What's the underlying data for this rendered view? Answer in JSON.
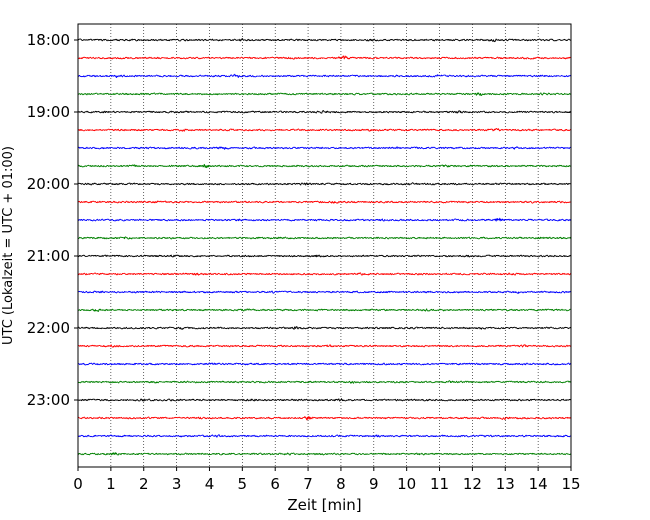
{
  "chart_data": {
    "type": "line",
    "title": "",
    "xlabel": "Zeit  [min]",
    "ylabel": "UTC (Lokalzeit = UTC + 01:00)",
    "xlim": [
      0,
      15
    ],
    "x_ticks": [
      "0",
      "1",
      "2",
      "3",
      "4",
      "5",
      "6",
      "7",
      "8",
      "9",
      "10",
      "11",
      "12",
      "13",
      "14",
      "15"
    ],
    "y_ticks": [
      "18:00",
      "19:00",
      "20:00",
      "21:00",
      "22:00",
      "23:00"
    ],
    "grid": "vertical dotted",
    "trace_interval_minutes": 15,
    "first_trace": "18:00",
    "last_trace": "23:45",
    "trace_colors": [
      "#000000",
      "#ff0000",
      "#0000ff",
      "#008000"
    ],
    "series": [
      {
        "start": "18:00",
        "events": [
          [
            5.0,
            1.8
          ],
          [
            9.0,
            1.5
          ],
          [
            12.6,
            2.2
          ]
        ]
      },
      {
        "start": "18:15",
        "events": [
          [
            8.1,
            3.2
          ],
          [
            6.5,
            1.6
          ],
          [
            13.7,
            1.5
          ]
        ]
      },
      {
        "start": "18:30",
        "events": [
          [
            1.2,
            1.8
          ],
          [
            4.8,
            2.3
          ],
          [
            10.9,
            1.7
          ]
        ]
      },
      {
        "start": "18:45",
        "events": [
          [
            2.0,
            1.6
          ],
          [
            12.2,
            2.0
          ],
          [
            14.2,
            1.5
          ]
        ]
      },
      {
        "start": "19:00",
        "events": [
          [
            0.8,
            1.6
          ],
          [
            7.5,
            1.8
          ],
          [
            11.6,
            1.6
          ]
        ]
      },
      {
        "start": "19:15",
        "events": [
          [
            3.2,
            1.7
          ],
          [
            8.9,
            1.6
          ],
          [
            12.7,
            2.3
          ]
        ]
      },
      {
        "start": "19:30",
        "events": [
          [
            4.4,
            2.0
          ],
          [
            9.7,
            1.5
          ],
          [
            13.3,
            1.7
          ]
        ]
      },
      {
        "start": "19:45",
        "events": [
          [
            1.7,
            1.6
          ],
          [
            3.9,
            2.3
          ],
          [
            11.2,
            1.8
          ]
        ]
      },
      {
        "start": "20:00",
        "events": [
          [
            0.4,
            1.5
          ],
          [
            6.9,
            2.0
          ],
          [
            10.1,
            2.1
          ]
        ]
      },
      {
        "start": "20:15",
        "events": [
          [
            2.4,
            1.7
          ],
          [
            7.8,
            1.6
          ],
          [
            13.9,
            1.5
          ]
        ]
      },
      {
        "start": "20:30",
        "events": [
          [
            4.9,
            1.6
          ],
          [
            9.3,
            1.5
          ],
          [
            12.8,
            2.8
          ]
        ]
      },
      {
        "start": "20:45",
        "events": [
          [
            1.5,
            1.8
          ],
          [
            6.1,
            1.5
          ],
          [
            14.1,
            1.6
          ]
        ]
      },
      {
        "start": "21:00",
        "events": [
          [
            2.9,
            1.6
          ],
          [
            7.3,
            2.0
          ],
          [
            11.9,
            1.5
          ]
        ]
      },
      {
        "start": "21:15",
        "events": [
          [
            3.6,
            1.6
          ],
          [
            8.6,
            1.8
          ],
          [
            13.2,
            1.5
          ]
        ]
      },
      {
        "start": "21:30",
        "events": [
          [
            0.7,
            1.5
          ],
          [
            5.9,
            1.7
          ],
          [
            13.4,
            2.0
          ]
        ]
      },
      {
        "start": "21:45",
        "events": [
          [
            0.6,
            2.0
          ],
          [
            5.1,
            1.8
          ],
          [
            10.6,
            1.6
          ]
        ]
      },
      {
        "start": "22:00",
        "events": [
          [
            3.1,
            1.7
          ],
          [
            6.6,
            2.1
          ],
          [
            12.3,
            1.8
          ]
        ]
      },
      {
        "start": "22:15",
        "events": [
          [
            1.0,
            1.6
          ],
          [
            7.6,
            1.7
          ],
          [
            13.6,
            1.6
          ]
        ]
      },
      {
        "start": "22:30",
        "events": [
          [
            4.1,
            1.6
          ],
          [
            9.9,
            1.5
          ],
          [
            14.4,
            1.5
          ]
        ]
      },
      {
        "start": "22:45",
        "events": [
          [
            2.3,
            1.5
          ],
          [
            8.3,
            1.9
          ],
          [
            11.3,
            1.7
          ]
        ]
      },
      {
        "start": "23:00",
        "events": [
          [
            2.0,
            1.8
          ],
          [
            5.3,
            1.6
          ],
          [
            8.0,
            2.0
          ]
        ]
      },
      {
        "start": "23:15",
        "events": [
          [
            3.7,
            1.5
          ],
          [
            7.0,
            2.9
          ],
          [
            13.0,
            1.8
          ]
        ]
      },
      {
        "start": "23:30",
        "events": [
          [
            4.2,
            1.6
          ],
          [
            9.1,
            1.7
          ],
          [
            12.5,
            1.5
          ]
        ]
      },
      {
        "start": "23:45",
        "events": [
          [
            1.1,
            2.3
          ],
          [
            6.4,
            1.6
          ],
          [
            10.4,
            1.7
          ]
        ]
      }
    ]
  }
}
